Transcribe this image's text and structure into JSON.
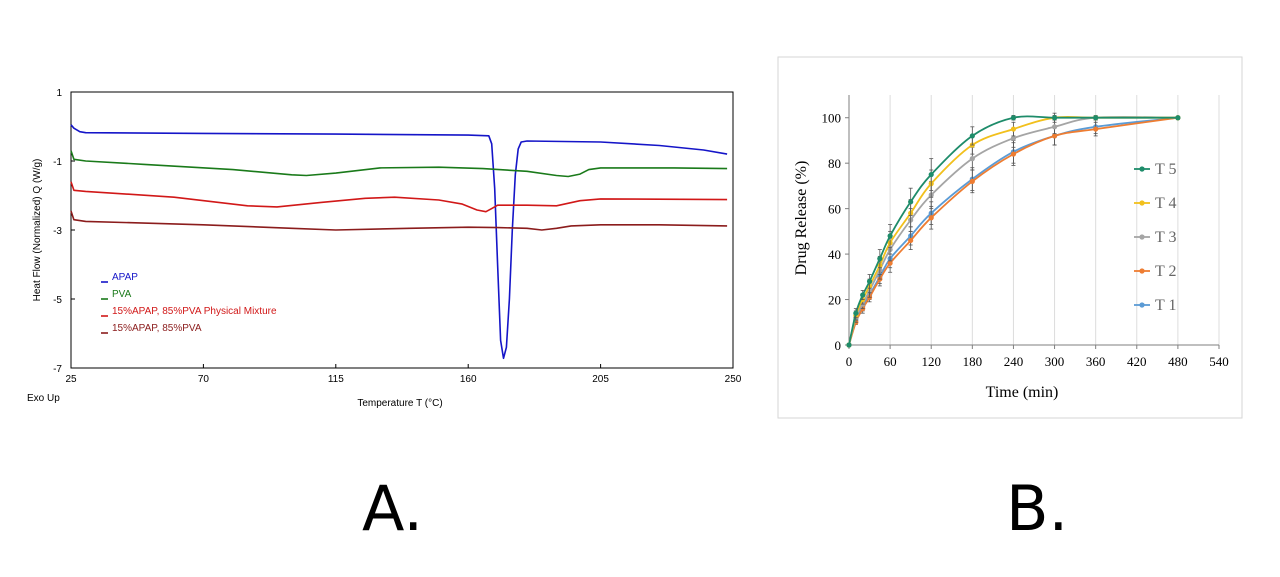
{
  "panels": {
    "a_label": "A.",
    "b_label": "B."
  },
  "chart_data": [
    {
      "type": "line",
      "title": "",
      "xlabel": "Temperature  T (°C)",
      "ylabel": "Heat Flow (Normalized)  Q (W/g)",
      "corner_note": "Exo Up",
      "xlim": [
        25,
        250
      ],
      "ylim": [
        -7,
        1
      ],
      "xticks": [
        25,
        70,
        115,
        160,
        205,
        250
      ],
      "yticks": [
        1,
        -1,
        -3,
        -5,
        -7
      ],
      "legend_position": "bottom-left",
      "grid": false,
      "series": [
        {
          "name": "APAP",
          "color": "#1515c8",
          "points": [
            [
              25,
              0.05
            ],
            [
              26,
              -0.05
            ],
            [
              28,
              -0.15
            ],
            [
              30,
              -0.18
            ],
            [
              70,
              -0.2
            ],
            [
              115,
              -0.22
            ],
            [
              160,
              -0.25
            ],
            [
              167,
              -0.27
            ],
            [
              168,
              -0.5
            ],
            [
              169,
              -1.8
            ],
            [
              170,
              -4.0
            ],
            [
              171,
              -6.2
            ],
            [
              172,
              -6.72
            ],
            [
              173,
              -6.4
            ],
            [
              174,
              -5.0
            ],
            [
              175,
              -3.0
            ],
            [
              176,
              -1.4
            ],
            [
              177,
              -0.65
            ],
            [
              178,
              -0.45
            ],
            [
              180,
              -0.42
            ],
            [
              205,
              -0.45
            ],
            [
              225,
              -0.55
            ],
            [
              240,
              -0.68
            ],
            [
              248,
              -0.8
            ]
          ]
        },
        {
          "name": "PVA",
          "color": "#1a7a1a",
          "points": [
            [
              25,
              -0.7
            ],
            [
              26,
              -0.95
            ],
            [
              30,
              -1.0
            ],
            [
              50,
              -1.1
            ],
            [
              80,
              -1.25
            ],
            [
              100,
              -1.4
            ],
            [
              105,
              -1.42
            ],
            [
              115,
              -1.35
            ],
            [
              130,
              -1.2
            ],
            [
              150,
              -1.18
            ],
            [
              165,
              -1.22
            ],
            [
              180,
              -1.3
            ],
            [
              190,
              -1.42
            ],
            [
              194,
              -1.45
            ],
            [
              198,
              -1.38
            ],
            [
              201,
              -1.25
            ],
            [
              205,
              -1.2
            ],
            [
              230,
              -1.2
            ],
            [
              248,
              -1.22
            ]
          ]
        },
        {
          "name": "15%APAP, 85%PVA Physical Mixture",
          "color": "#d11818",
          "points": [
            [
              25,
              -1.6
            ],
            [
              26,
              -1.85
            ],
            [
              30,
              -1.88
            ],
            [
              60,
              -2.05
            ],
            [
              85,
              -2.3
            ],
            [
              95,
              -2.33
            ],
            [
              110,
              -2.2
            ],
            [
              125,
              -2.08
            ],
            [
              135,
              -2.05
            ],
            [
              150,
              -2.13
            ],
            [
              158,
              -2.25
            ],
            [
              163,
              -2.42
            ],
            [
              166,
              -2.47
            ],
            [
              168,
              -2.38
            ],
            [
              170,
              -2.28
            ],
            [
              180,
              -2.28
            ],
            [
              190,
              -2.3
            ],
            [
              198,
              -2.15
            ],
            [
              205,
              -2.1
            ],
            [
              248,
              -2.12
            ]
          ]
        },
        {
          "name": "15%APAP, 85%PVA",
          "color": "#8b1c1c",
          "points": [
            [
              25,
              -2.45
            ],
            [
              26,
              -2.7
            ],
            [
              30,
              -2.75
            ],
            [
              70,
              -2.85
            ],
            [
              100,
              -2.95
            ],
            [
              115,
              -3.0
            ],
            [
              140,
              -2.95
            ],
            [
              160,
              -2.92
            ],
            [
              170,
              -2.93
            ],
            [
              180,
              -2.95
            ],
            [
              185,
              -3.0
            ],
            [
              190,
              -2.95
            ],
            [
              195,
              -2.88
            ],
            [
              205,
              -2.85
            ],
            [
              225,
              -2.85
            ],
            [
              248,
              -2.88
            ]
          ]
        }
      ]
    },
    {
      "type": "line",
      "title": "",
      "xlabel": "Time (min)",
      "ylabel": "Drug Release (%)",
      "xlim": [
        0,
        540
      ],
      "ylim": [
        0,
        110
      ],
      "xticks": [
        0,
        60,
        120,
        180,
        240,
        300,
        360,
        420,
        480,
        540
      ],
      "yticks": [
        0,
        20,
        40,
        60,
        80,
        100
      ],
      "grid": true,
      "legend_position": "right",
      "x": [
        0,
        10,
        20,
        30,
        45,
        60,
        90,
        120,
        180,
        240,
        300,
        360,
        480
      ],
      "series": [
        {
          "name": "T 5",
          "color": "#1e8c6a",
          "values": [
            0,
            14,
            22,
            28,
            38,
            48,
            63,
            75,
            92,
            100,
            100,
            100,
            100
          ],
          "err": [
            0,
            2,
            2,
            3,
            4,
            5,
            6,
            7,
            4,
            1,
            1,
            0,
            0
          ]
        },
        {
          "name": "T 4",
          "color": "#f2c01c",
          "values": [
            0,
            13,
            20,
            26,
            35,
            45,
            58,
            71,
            88,
            95,
            100,
            100,
            100
          ],
          "err": [
            0,
            2,
            2,
            3,
            4,
            5,
            6,
            6,
            4,
            3,
            2,
            0,
            0
          ]
        },
        {
          "name": "T 3",
          "color": "#a5a5a5",
          "values": [
            0,
            12,
            18,
            24,
            33,
            42,
            55,
            66,
            82,
            91,
            96,
            100,
            100
          ],
          "err": [
            0,
            2,
            2,
            3,
            4,
            5,
            5,
            6,
            5,
            4,
            3,
            1,
            0
          ]
        },
        {
          "name": "T 2",
          "color": "#ee7d32",
          "values": [
            0,
            10,
            16,
            21,
            29,
            36,
            46,
            56,
            72,
            84,
            92,
            95,
            100
          ],
          "err": [
            0,
            1,
            2,
            2,
            3,
            4,
            4,
            5,
            5,
            5,
            4,
            3,
            0
          ]
        },
        {
          "name": "T 1",
          "color": "#5b9bd5",
          "values": [
            0,
            11,
            17,
            22,
            30,
            38,
            48,
            58,
            73,
            85,
            92,
            96,
            100
          ],
          "err": [
            0,
            1,
            2,
            2,
            3,
            4,
            4,
            5,
            5,
            5,
            4,
            3,
            0
          ]
        }
      ]
    }
  ]
}
